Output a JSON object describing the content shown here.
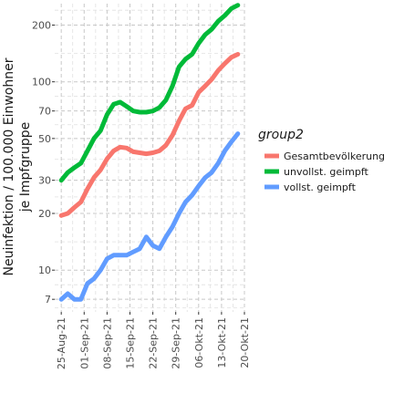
{
  "chart_data": {
    "type": "line",
    "y_scale": "log",
    "ylabel": [
      "Neuinfektion / 100.000 Einwohner",
      "je Impfgruppe"
    ],
    "xlabel": "",
    "x_ticks": [
      "25-Aug-21",
      "01-Sep-21",
      "08-Sep-21",
      "15-Sep-21",
      "22-Sep-21",
      "29-Sep-21",
      "06-Okt-21",
      "13-Okt-21",
      "20-Okt-21"
    ],
    "x_range": [
      -2,
      56
    ],
    "y_ticks": [
      7,
      10,
      20,
      30,
      50,
      70,
      100,
      200
    ],
    "y_tick_labels": [
      "7",
      "10",
      "20",
      "30",
      "50",
      "70",
      "100",
      "200"
    ],
    "ylim": [
      6,
      260
    ],
    "grid": true,
    "legend": {
      "title": "group2",
      "position": "right"
    },
    "x": [
      0,
      2,
      4,
      6,
      8,
      10,
      12,
      14,
      16,
      18,
      20,
      22,
      24,
      26,
      28,
      30,
      32,
      34,
      36,
      38,
      40,
      42,
      44,
      46,
      48,
      50,
      52,
      54
    ],
    "series": [
      {
        "name": "Gesamtbevölkerung",
        "color": "#F8766D",
        "values": [
          19.5,
          20,
          21.5,
          23,
          27,
          31,
          34,
          39,
          43,
          45,
          44.5,
          42.5,
          42,
          41.5,
          42,
          43,
          46,
          52,
          62,
          72,
          75,
          88,
          95,
          103,
          115,
          125,
          135,
          140
        ]
      },
      {
        "name": "unvollst. geimpft",
        "color": "#00BA38",
        "values": [
          30,
          33,
          35,
          37,
          43,
          50,
          55,
          67,
          76,
          78,
          74,
          70,
          69,
          69,
          70,
          73,
          80,
          95,
          120,
          132,
          140,
          160,
          178,
          190,
          210,
          225,
          245,
          255
        ]
      },
      {
        "name": "vollst. geimpft",
        "color": "#619CFF",
        "values": [
          7,
          7.5,
          7,
          7,
          8.5,
          9,
          10,
          11.5,
          12,
          12,
          12,
          12.5,
          13,
          15,
          13.5,
          13,
          15,
          17,
          20,
          23,
          25,
          28,
          31,
          33,
          37,
          43,
          48,
          53
        ]
      }
    ]
  }
}
